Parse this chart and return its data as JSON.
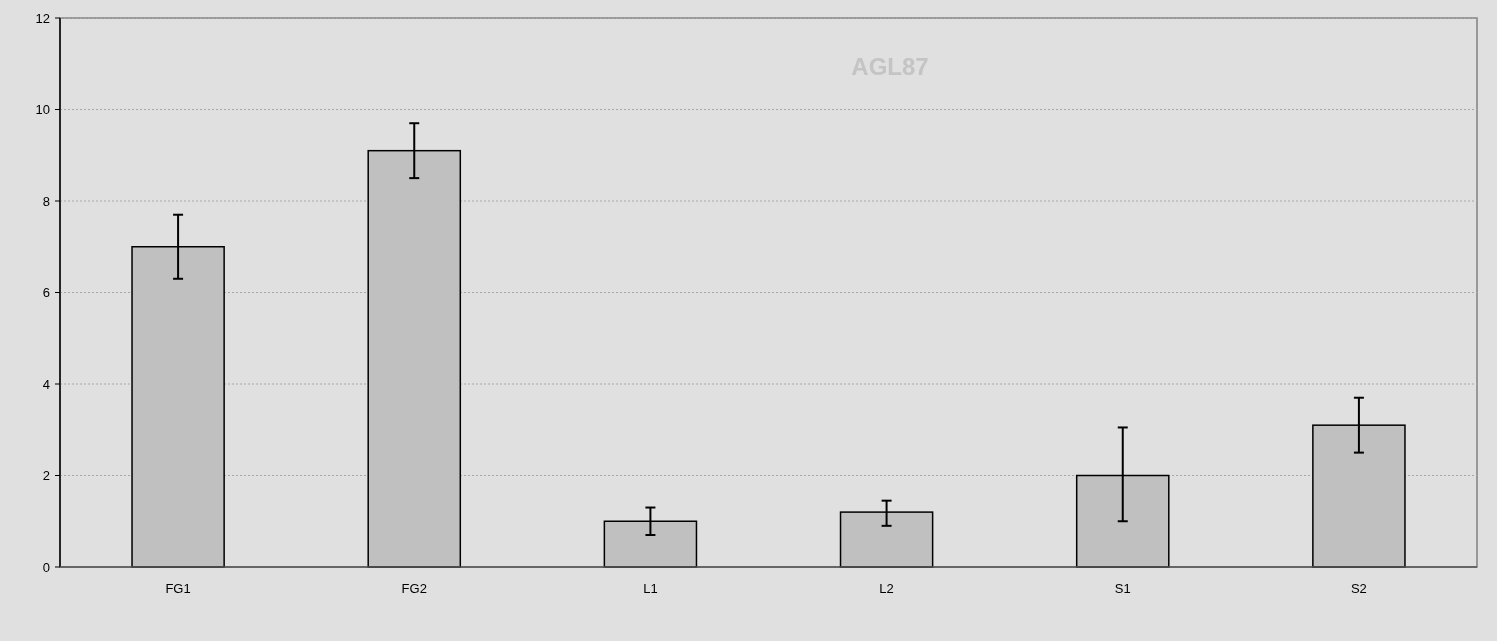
{
  "chart_data": {
    "type": "bar",
    "title": "AGL87",
    "categories": [
      "FG1",
      "FG2",
      "L1",
      "L2",
      "S1",
      "S2"
    ],
    "values": [
      7.0,
      9.1,
      1.0,
      1.2,
      2.0,
      3.1
    ],
    "errors": [
      [
        6.3,
        7.7
      ],
      [
        8.5,
        9.7
      ],
      [
        0.7,
        1.3
      ],
      [
        0.9,
        1.45
      ],
      [
        1.0,
        3.05
      ],
      [
        2.5,
        3.7
      ]
    ],
    "color": "#c0c0c0",
    "ylim": [
      0,
      12
    ],
    "yticks": [
      0,
      2,
      4,
      6,
      8,
      10,
      12
    ],
    "grid": "y"
  }
}
